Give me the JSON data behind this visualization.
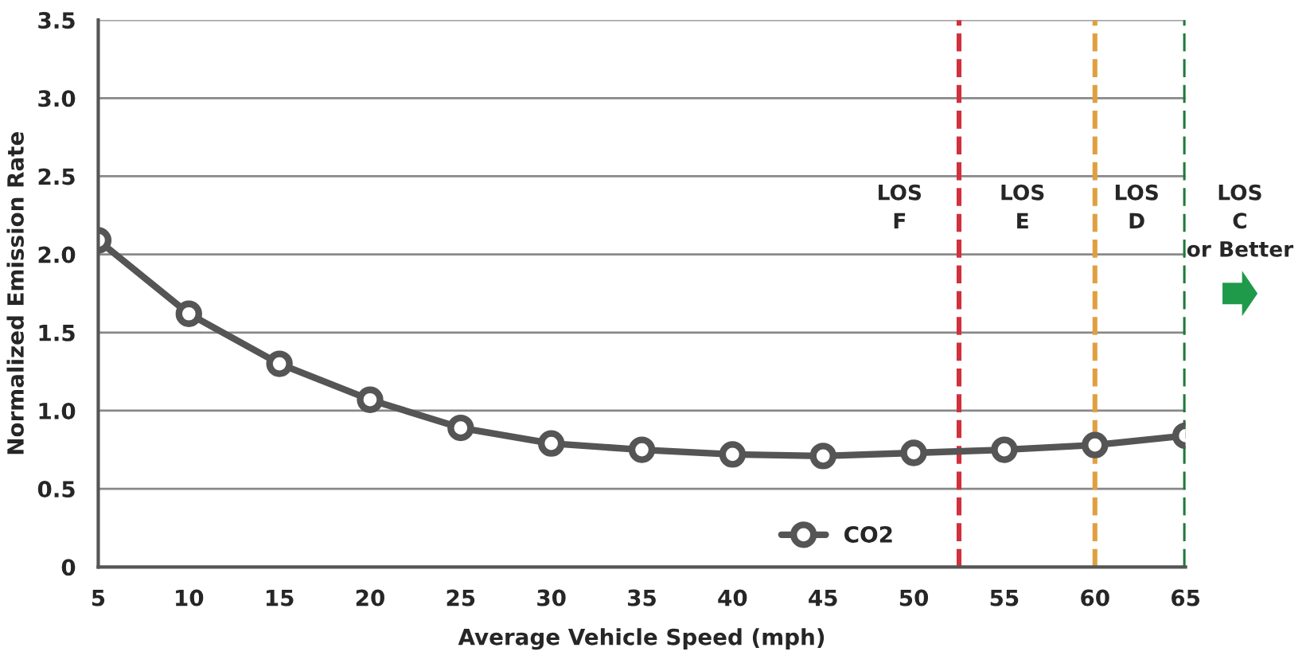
{
  "chart_data": {
    "type": "line",
    "xlabel": "Average Vehicle Speed (mph)",
    "ylabel": "Normalized Emission Rate",
    "x": [
      5,
      10,
      15,
      20,
      25,
      30,
      35,
      40,
      45,
      50,
      55,
      60,
      65
    ],
    "series": [
      {
        "name": "CO2",
        "color": "#555555",
        "values": [
          2.09,
          1.62,
          1.3,
          1.07,
          0.89,
          0.79,
          0.75,
          0.72,
          0.71,
          0.73,
          0.75,
          0.78,
          0.84
        ]
      }
    ],
    "xlim": [
      5,
      65
    ],
    "xticks": [
      5,
      10,
      15,
      20,
      25,
      30,
      35,
      40,
      45,
      50,
      55,
      60,
      65
    ],
    "ylim": [
      0,
      3.5
    ],
    "yticks": [
      0,
      0.5,
      {
        "value": 1,
        "label": "1.0"
      },
      1.5,
      {
        "value": 2,
        "label": "2.0"
      },
      2.5,
      {
        "value": 3,
        "label": "3.0"
      },
      3.5
    ],
    "grid": "y",
    "legend": "bottom",
    "marker": "circle",
    "line_style": "solid",
    "ref_lines": [
      {
        "axis": "x",
        "value": 52.5,
        "color": "#d0313d",
        "line_style": "dashed"
      },
      {
        "axis": "x",
        "value": 60,
        "color": "#e0a040",
        "line_style": "dashed"
      },
      {
        "axis": "x",
        "value": 65,
        "color": "#1e7a3a",
        "line_style": "dashed"
      }
    ],
    "annotations": [
      "LOS\nF",
      "LOS\nE",
      "LOS\nD",
      "LOS\nC\nor Better"
    ]
  }
}
